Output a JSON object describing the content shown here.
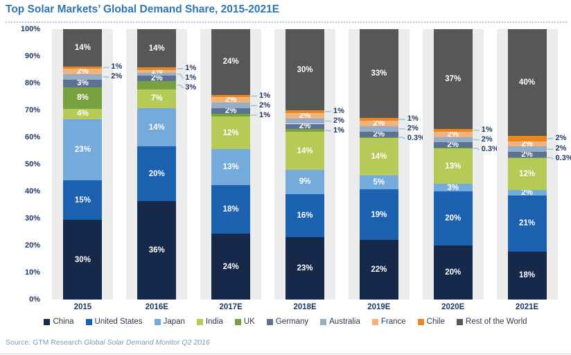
{
  "title": "Top Solar Markets’ Global Demand Share, 2015-2021E",
  "source": {
    "prefix": "Source: GTM Research ",
    "publication": "Global Solar Demand Monitor Q2 2016"
  },
  "y_axis_ticks": [
    "0%",
    "10%",
    "20%",
    "30%",
    "40%",
    "50%",
    "60%",
    "70%",
    "80%",
    "90%",
    "100%"
  ],
  "chart_data": {
    "type": "bar",
    "stacked": true,
    "title": "Top Solar Markets’ Global Demand Share, 2015-2021E",
    "xlabel": "",
    "ylabel": "",
    "ylim": [
      0,
      100
    ],
    "grid": false,
    "legend_position": "bottom",
    "categories": [
      "2015",
      "2016E",
      "2017E",
      "2018E",
      "2019E",
      "2020E",
      "2021E"
    ],
    "series": [
      {
        "name": "China",
        "color": "#16294b",
        "values": [
          30,
          36,
          24,
          23,
          22,
          20,
          18
        ]
      },
      {
        "name": "United States",
        "color": "#1c61af",
        "values": [
          15,
          20,
          18,
          16,
          19,
          20,
          21
        ]
      },
      {
        "name": "Japan",
        "color": "#74aadc",
        "values": [
          23,
          14,
          13,
          9,
          5,
          3,
          2
        ]
      },
      {
        "name": "India",
        "color": "#b6ca58",
        "values": [
          4,
          7,
          12,
          14,
          14,
          13,
          12
        ]
      },
      {
        "name": "UK",
        "color": "#78a040",
        "values": [
          8,
          3,
          1,
          1,
          0.3,
          0.3,
          0.3
        ]
      },
      {
        "name": "Germany",
        "color": "#5c7292",
        "values": [
          3,
          2,
          2,
          2,
          2,
          2,
          2
        ]
      },
      {
        "name": "Australia",
        "color": "#97adc6",
        "values": [
          2,
          1,
          2,
          2,
          2,
          2,
          2
        ]
      },
      {
        "name": "France",
        "color": "#f2b27c",
        "values": [
          2,
          1,
          2,
          2,
          2,
          2,
          2
        ]
      },
      {
        "name": "Chile",
        "color": "#e8871f",
        "values": [
          1,
          1,
          1,
          1,
          1,
          1,
          2
        ]
      },
      {
        "name": "Rest of the World",
        "color": "#575757",
        "values": [
          14,
          14,
          24,
          30,
          33,
          37,
          40
        ]
      }
    ],
    "callout_labeled_series": {
      "2015": [
        "Chile",
        "Australia"
      ],
      "2016E": [
        "Chile",
        "Australia",
        "UK"
      ],
      "2017E": [
        "Chile",
        "Australia",
        "UK"
      ],
      "2018E": [
        "Chile",
        "Australia",
        "UK"
      ],
      "2019E": [
        "Chile",
        "Australia",
        "UK"
      ],
      "2020E": [
        "Chile",
        "Australia",
        "UK"
      ],
      "2021E": [
        "Chile",
        "Australia",
        "UK"
      ]
    }
  },
  "colors": {
    "title": "#2e75b6",
    "axis_text": "#1f3864",
    "leader_line": "#9cc3e5",
    "plot_column_bg": "#edecec",
    "source_text": "#6fa0c7"
  }
}
